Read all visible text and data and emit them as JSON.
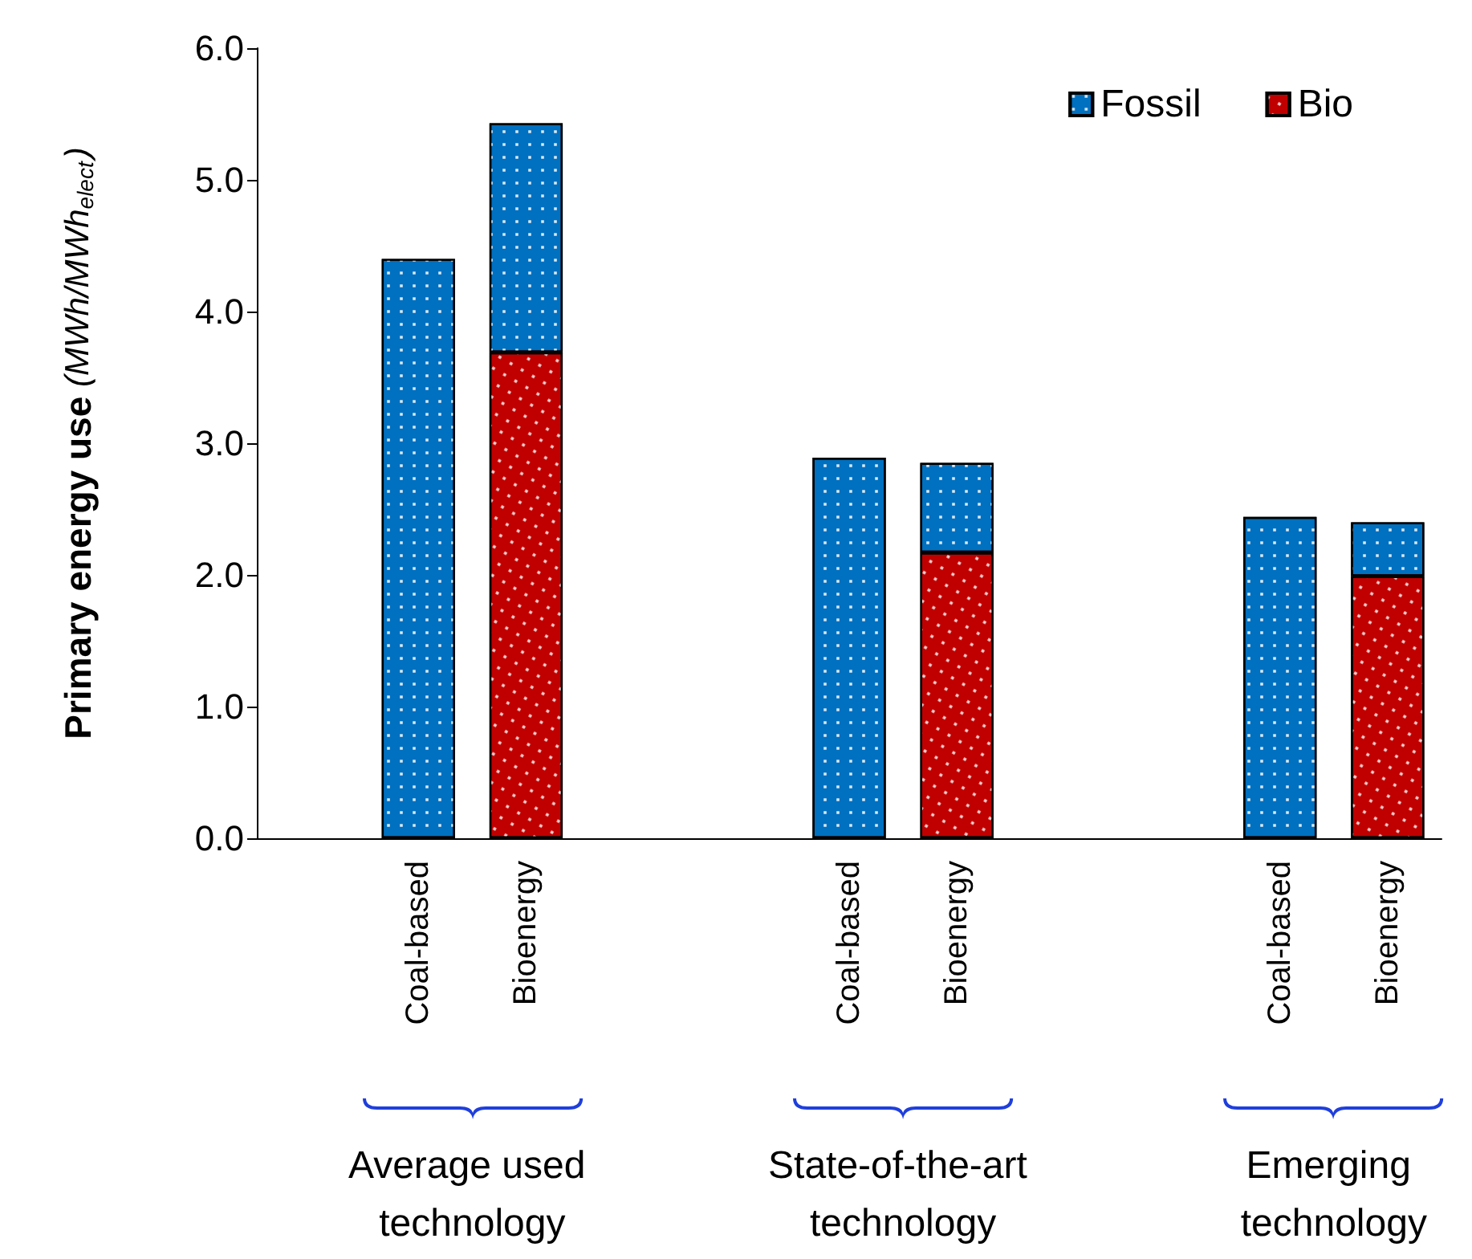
{
  "chart_data": {
    "type": "bar",
    "stacked": true,
    "ylabel": "Primary energy use (MWh/MWh$_{elect}$)",
    "categories": [
      null,
      "Coal-based",
      "Bioenergy",
      null,
      null,
      "Coal-based",
      "Bioenergy",
      null,
      null,
      "Coal-based",
      "Bioenergy"
    ],
    "series": [
      {
        "name": "Bio",
        "color": "#c00000",
        "values": [
          null,
          null,
          3.69,
          null,
          null,
          null,
          2.17,
          null,
          null,
          null,
          1.99
        ]
      },
      {
        "name": "Fossil",
        "color": "#0070c0",
        "values": [
          null,
          4.4,
          1.74,
          null,
          null,
          2.89,
          0.68,
          null,
          null,
          2.44,
          0.41
        ]
      }
    ],
    "ylim": [
      0,
      6
    ],
    "yticks": [
      {
        "value": 0,
        "label": "0.0"
      },
      {
        "value": 1,
        "label": "1.0"
      },
      {
        "value": 2,
        "label": "2.0"
      },
      {
        "value": 3,
        "label": "3.0"
      },
      {
        "value": 4,
        "label": "4.0"
      },
      {
        "value": 5,
        "label": "5.0"
      },
      {
        "value": 6,
        "label": "6.0"
      }
    ],
    "grid": false,
    "legend": "top right",
    "annotations": [
      "Average used technology",
      "State-of-the-art technology",
      "Emerging technology"
    ]
  }
}
